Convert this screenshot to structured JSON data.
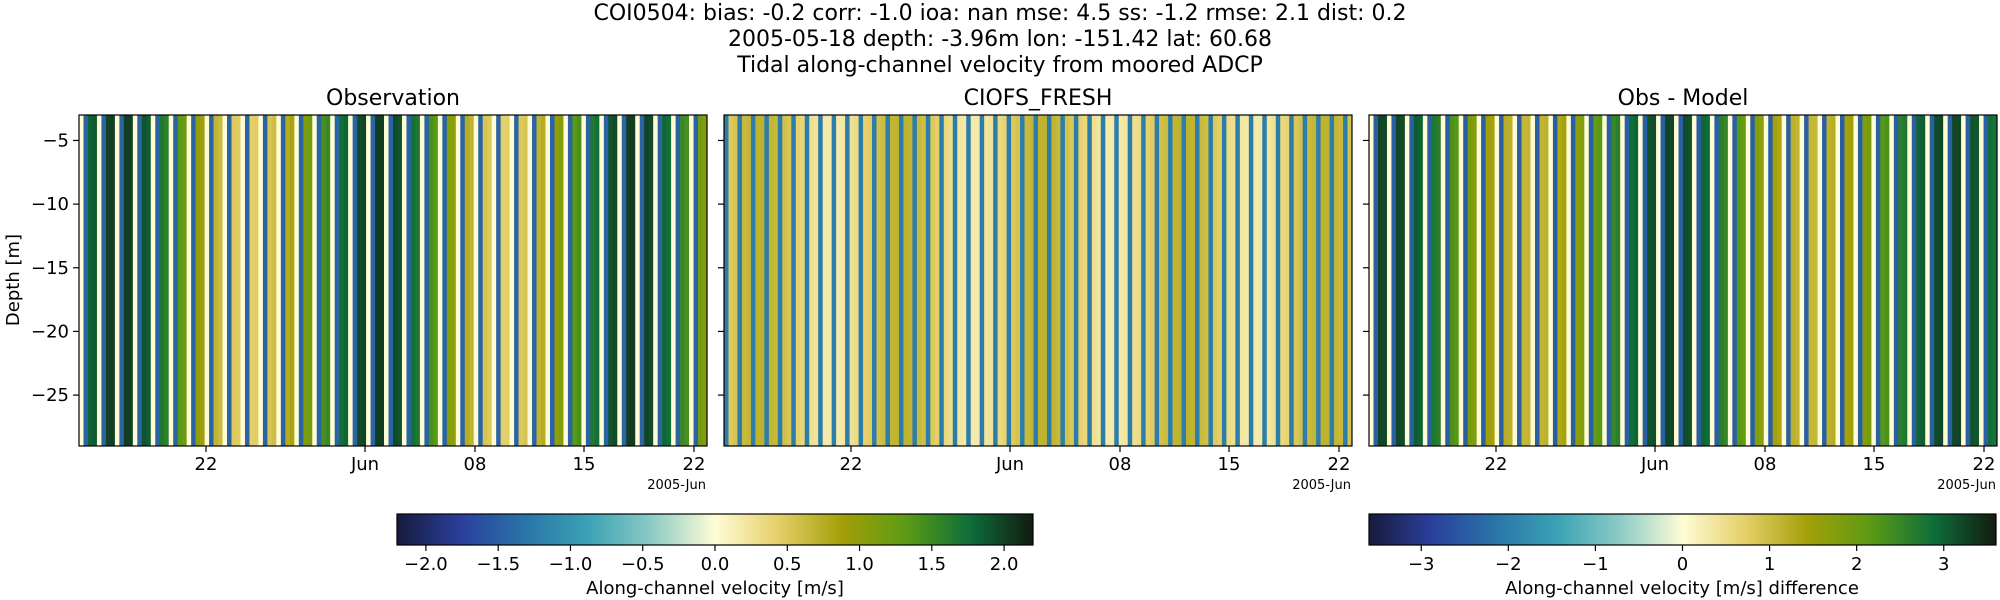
{
  "header": {
    "line1": "COI0504: bias: -0.2  corr: -1.0  ioa: nan  mse: 4.5  ss: -1.2  rmse: 2.1  dist: 0.2",
    "line2": "2005-05-18 depth: -3.96m lon: -151.42 lat: 60.68",
    "line3": "Tidal along-channel velocity from moored ADCP"
  },
  "colors": {
    "colormap": [
      "#171b3d",
      "#2a3f9c",
      "#2a74a8",
      "#3aa2b4",
      "#8ccbc6",
      "#fffcd6",
      "#e5cf68",
      "#a39f08",
      "#5b9b14",
      "#0e6e3a",
      "#131b10"
    ]
  },
  "chart_data": [
    {
      "type": "heatmap",
      "title": "Observation",
      "ylabel": "Depth [m]",
      "ylim": [
        -29,
        -3
      ],
      "yticks": [
        -5,
        -10,
        -15,
        -20,
        -25
      ],
      "xticks": [
        "22",
        "Jun",
        "08",
        "15",
        "22"
      ],
      "x_offset_label": "2005-Jun",
      "x_range": [
        "2005-05-18",
        "2005-06-28"
      ],
      "pattern": "vertical stripes alternating between positive and negative along-channel velocity (tidal), uniform over depth"
    },
    {
      "type": "heatmap",
      "title": "CIOFS_FRESH",
      "ylim": [
        -29,
        -3
      ],
      "xticks": [
        "22",
        "Jun",
        "08",
        "15",
        "22"
      ],
      "x_offset_label": "2005-Jun",
      "x_range": [
        "2005-05-18",
        "2005-06-28"
      ],
      "pattern": "vertical stripes alternating between weak positive and negative velocities, uniform over depth"
    },
    {
      "type": "heatmap",
      "title": "Obs - Model",
      "ylim": [
        -29,
        -3
      ],
      "xticks": [
        "22",
        "Jun",
        "08",
        "15",
        "22"
      ],
      "x_offset_label": "2005-Jun",
      "x_range": [
        "2005-05-18",
        "2005-06-28"
      ],
      "pattern": "vertical stripes of observation minus model difference, uniform over depth"
    }
  ],
  "colorbars": [
    {
      "label": "Along-channel velocity [m/s]",
      "range": [
        -2.2,
        2.2
      ],
      "ticks": [
        "−2.0",
        "−1.5",
        "−1.0",
        "−0.5",
        "0.0",
        "0.5",
        "1.0",
        "1.5",
        "2.0"
      ],
      "tick_values": [
        -2.0,
        -1.5,
        -1.0,
        -0.5,
        0.0,
        0.5,
        1.0,
        1.5,
        2.0
      ]
    },
    {
      "label": "Along-channel velocity [m/s] difference",
      "range": [
        -3.6,
        3.6
      ],
      "ticks": [
        "−3",
        "−2",
        "−1",
        "0",
        "1",
        "2",
        "3"
      ],
      "tick_values": [
        -3,
        -2,
        -1,
        0,
        1,
        2,
        3
      ]
    }
  ]
}
